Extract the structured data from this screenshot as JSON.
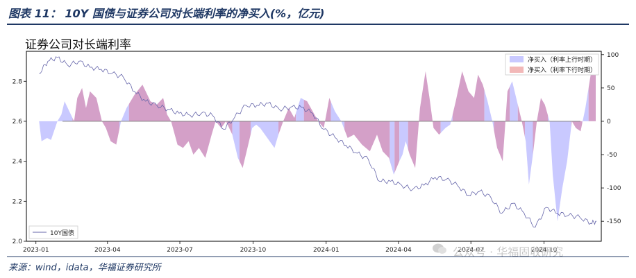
{
  "figure": {
    "caption": "图表 11： 10Y 国债与证券公司对长端利率的净买入(%，亿元)",
    "source": "来源：wind，idata，华福证券研究所",
    "watermark": "公众号 · 华福固收研究"
  },
  "chart_data": {
    "type": "area",
    "title": "证券公司对长端利率",
    "x_ticks": [
      "2023-01",
      "2023-04",
      "2023-07",
      "2023-10",
      "2024-01",
      "2024-04",
      "2024-07",
      "2024-10"
    ],
    "y_left": {
      "lim": [
        2.0,
        2.95
      ],
      "ticks": [
        "2.0",
        "2.2",
        "2.4",
        "2.6",
        "2.8"
      ]
    },
    "y_right": {
      "lim": [
        -180,
        105
      ],
      "ticks": [
        "100",
        "50",
        "0",
        "-50",
        "-100",
        "-150"
      ]
    },
    "legend_top_right": [
      "净买入（利率上行时期）",
      "净买入（利率下行时期）"
    ],
    "legend_bottom_left": [
      "10Y国债"
    ],
    "colors": {
      "rate_up": "#c9c9ff",
      "rate_down": "#d4a0c8",
      "bond_line": "#6666aa",
      "legend_down_swatch": "#f2b8b8"
    },
    "net_buy": [
      {
        "date": "2023-01-05",
        "value": 0
      },
      {
        "date": "2023-01-08",
        "value": -30
      },
      {
        "date": "2023-01-15",
        "value": -25
      },
      {
        "date": "2023-01-20",
        "value": -28
      },
      {
        "date": "2023-01-28",
        "value": 0
      },
      {
        "date": "2023-02-02",
        "value": 10
      },
      {
        "date": "2023-02-06",
        "value": 30
      },
      {
        "date": "2023-02-12",
        "value": 15
      },
      {
        "date": "2023-02-18",
        "value": 0
      },
      {
        "date": "2023-02-22",
        "value": 35
      },
      {
        "date": "2023-02-28",
        "value": 50
      },
      {
        "date": "2023-03-05",
        "value": 20
      },
      {
        "date": "2023-03-10",
        "value": 45
      },
      {
        "date": "2023-03-18",
        "value": 35
      },
      {
        "date": "2023-03-25",
        "value": 0
      },
      {
        "date": "2023-03-30",
        "value": -10
      },
      {
        "date": "2023-04-05",
        "value": -30
      },
      {
        "date": "2023-04-12",
        "value": -35
      },
      {
        "date": "2023-04-18",
        "value": 0
      },
      {
        "date": "2023-04-25",
        "value": 20
      },
      {
        "date": "2023-05-05",
        "value": 40
      },
      {
        "date": "2023-05-15",
        "value": 55
      },
      {
        "date": "2023-05-25",
        "value": 30
      },
      {
        "date": "2023-06-02",
        "value": 25
      },
      {
        "date": "2023-06-10",
        "value": 35
      },
      {
        "date": "2023-06-15",
        "value": 10
      },
      {
        "date": "2023-06-20",
        "value": 0
      },
      {
        "date": "2023-06-28",
        "value": -35
      },
      {
        "date": "2023-07-05",
        "value": -40
      },
      {
        "date": "2023-07-12",
        "value": -30
      },
      {
        "date": "2023-07-18",
        "value": -50
      },
      {
        "date": "2023-07-25",
        "value": -40
      },
      {
        "date": "2023-08-02",
        "value": -55
      },
      {
        "date": "2023-08-10",
        "value": -20
      },
      {
        "date": "2023-08-15",
        "value": 0
      },
      {
        "date": "2023-08-22",
        "value": -10
      },
      {
        "date": "2023-08-28",
        "value": 0
      },
      {
        "date": "2023-09-05",
        "value": -20
      },
      {
        "date": "2023-09-12",
        "value": -55
      },
      {
        "date": "2023-09-18",
        "value": -70
      },
      {
        "date": "2023-09-24",
        "value": -40
      },
      {
        "date": "2023-09-30",
        "value": -10
      },
      {
        "date": "2023-10-05",
        "value": -5
      },
      {
        "date": "2023-10-10",
        "value": -10
      },
      {
        "date": "2023-10-16",
        "value": -20
      },
      {
        "date": "2023-10-22",
        "value": -30
      },
      {
        "date": "2023-10-28",
        "value": -40
      },
      {
        "date": "2023-11-02",
        "value": -20
      },
      {
        "date": "2023-11-08",
        "value": 0
      },
      {
        "date": "2023-11-15",
        "value": 20
      },
      {
        "date": "2023-11-22",
        "value": 5
      },
      {
        "date": "2023-11-30",
        "value": 35
      },
      {
        "date": "2023-12-08",
        "value": 30
      },
      {
        "date": "2023-12-15",
        "value": 15
      },
      {
        "date": "2023-12-22",
        "value": 0
      },
      {
        "date": "2023-12-29",
        "value": -10
      },
      {
        "date": "2024-01-05",
        "value": 35
      },
      {
        "date": "2024-01-12",
        "value": 15
      },
      {
        "date": "2024-01-20",
        "value": 0
      },
      {
        "date": "2024-01-28",
        "value": -25
      },
      {
        "date": "2024-02-05",
        "value": -20
      },
      {
        "date": "2024-02-15",
        "value": -35
      },
      {
        "date": "2024-02-25",
        "value": -45
      },
      {
        "date": "2024-03-05",
        "value": -20
      },
      {
        "date": "2024-03-12",
        "value": -45
      },
      {
        "date": "2024-03-20",
        "value": -55
      },
      {
        "date": "2024-03-26",
        "value": -80
      },
      {
        "date": "2024-04-02",
        "value": -60
      },
      {
        "date": "2024-04-06",
        "value": -50
      },
      {
        "date": "2024-04-10",
        "value": -30
      },
      {
        "date": "2024-04-15",
        "value": -50
      },
      {
        "date": "2024-04-22",
        "value": -70
      },
      {
        "date": "2024-04-28",
        "value": 20
      },
      {
        "date": "2024-05-05",
        "value": 75
      },
      {
        "date": "2024-05-10",
        "value": 35
      },
      {
        "date": "2024-05-15",
        "value": -10
      },
      {
        "date": "2024-05-22",
        "value": -20
      },
      {
        "date": "2024-05-30",
        "value": -10
      },
      {
        "date": "2024-06-05",
        "value": -5
      },
      {
        "date": "2024-06-12",
        "value": 30
      },
      {
        "date": "2024-06-20",
        "value": 75
      },
      {
        "date": "2024-06-28",
        "value": 45
      },
      {
        "date": "2024-07-05",
        "value": 35
      },
      {
        "date": "2024-07-10",
        "value": 70
      },
      {
        "date": "2024-07-16",
        "value": 55
      },
      {
        "date": "2024-07-22",
        "value": 30
      },
      {
        "date": "2024-07-28",
        "value": 0
      },
      {
        "date": "2024-08-03",
        "value": -40
      },
      {
        "date": "2024-08-10",
        "value": -60
      },
      {
        "date": "2024-08-16",
        "value": 45
      },
      {
        "date": "2024-08-22",
        "value": 60
      },
      {
        "date": "2024-08-28",
        "value": 30
      },
      {
        "date": "2024-09-03",
        "value": 0
      },
      {
        "date": "2024-09-08",
        "value": -30
      },
      {
        "date": "2024-09-12",
        "value": -95
      },
      {
        "date": "2024-09-17",
        "value": -50
      },
      {
        "date": "2024-09-22",
        "value": 0
      },
      {
        "date": "2024-09-27",
        "value": 35
      },
      {
        "date": "2024-10-02",
        "value": 25
      },
      {
        "date": "2024-10-08",
        "value": 0
      },
      {
        "date": "2024-10-12",
        "value": -80
      },
      {
        "date": "2024-10-18",
        "value": -150
      },
      {
        "date": "2024-10-24",
        "value": -100
      },
      {
        "date": "2024-10-30",
        "value": -60
      },
      {
        "date": "2024-11-05",
        "value": 0
      },
      {
        "date": "2024-11-10",
        "value": -10
      },
      {
        "date": "2024-11-16",
        "value": -15
      },
      {
        "date": "2024-11-22",
        "value": 20
      },
      {
        "date": "2024-11-30",
        "value": 80
      },
      {
        "date": "2024-12-05",
        "value": 85
      }
    ],
    "rate_periods": [
      {
        "start": "2023-01-01",
        "end": "2023-02-16",
        "direction": "up"
      },
      {
        "start": "2023-02-16",
        "end": "2023-04-16",
        "direction": "down"
      },
      {
        "start": "2023-04-16",
        "end": "2023-04-28",
        "direction": "up"
      },
      {
        "start": "2023-04-28",
        "end": "2023-09-05",
        "direction": "down"
      },
      {
        "start": "2023-09-05",
        "end": "2023-09-14",
        "direction": "up"
      },
      {
        "start": "2023-09-14",
        "end": "2023-09-28",
        "direction": "down"
      },
      {
        "start": "2023-09-28",
        "end": "2023-11-02",
        "direction": "up"
      },
      {
        "start": "2023-11-02",
        "end": "2023-11-24",
        "direction": "down"
      },
      {
        "start": "2023-11-24",
        "end": "2023-12-04",
        "direction": "up"
      },
      {
        "start": "2023-12-04",
        "end": "2024-01-07",
        "direction": "down"
      },
      {
        "start": "2024-01-07",
        "end": "2024-01-24",
        "direction": "up"
      },
      {
        "start": "2024-01-24",
        "end": "2024-03-21",
        "direction": "down"
      },
      {
        "start": "2024-03-21",
        "end": "2024-03-27",
        "direction": "up"
      },
      {
        "start": "2024-03-27",
        "end": "2024-04-02",
        "direction": "down"
      },
      {
        "start": "2024-04-02",
        "end": "2024-04-13",
        "direction": "up"
      },
      {
        "start": "2024-04-13",
        "end": "2024-05-24",
        "direction": "down"
      },
      {
        "start": "2024-05-24",
        "end": "2024-06-08",
        "direction": "up"
      },
      {
        "start": "2024-06-08",
        "end": "2024-07-18",
        "direction": "down"
      },
      {
        "start": "2024-07-18",
        "end": "2024-07-30",
        "direction": "up"
      },
      {
        "start": "2024-07-30",
        "end": "2024-08-19",
        "direction": "down"
      },
      {
        "start": "2024-08-19",
        "end": "2024-08-29",
        "direction": "up"
      },
      {
        "start": "2024-08-29",
        "end": "2024-09-07",
        "direction": "down"
      },
      {
        "start": "2024-09-07",
        "end": "2024-09-17",
        "direction": "up"
      },
      {
        "start": "2024-09-17",
        "end": "2024-10-06",
        "direction": "down"
      },
      {
        "start": "2024-10-06",
        "end": "2024-11-04",
        "direction": "up"
      },
      {
        "start": "2024-11-04",
        "end": "2024-11-18",
        "direction": "down"
      },
      {
        "start": "2024-11-18",
        "end": "2024-11-26",
        "direction": "up"
      },
      {
        "start": "2024-11-26",
        "end": "2024-12-08",
        "direction": "down"
      }
    ],
    "bond_10y": [
      {
        "date": "2023-01-05",
        "value": 2.84
      },
      {
        "date": "2023-01-16",
        "value": 2.9
      },
      {
        "date": "2023-01-28",
        "value": 2.92
      },
      {
        "date": "2023-02-10",
        "value": 2.88
      },
      {
        "date": "2023-02-24",
        "value": 2.9
      },
      {
        "date": "2023-03-10",
        "value": 2.87
      },
      {
        "date": "2023-03-24",
        "value": 2.86
      },
      {
        "date": "2023-04-07",
        "value": 2.84
      },
      {
        "date": "2023-04-21",
        "value": 2.82
      },
      {
        "date": "2023-05-05",
        "value": 2.75
      },
      {
        "date": "2023-05-19",
        "value": 2.7
      },
      {
        "date": "2023-06-02",
        "value": 2.68
      },
      {
        "date": "2023-06-16",
        "value": 2.66
      },
      {
        "date": "2023-06-30",
        "value": 2.64
      },
      {
        "date": "2023-07-14",
        "value": 2.63
      },
      {
        "date": "2023-07-28",
        "value": 2.64
      },
      {
        "date": "2023-08-11",
        "value": 2.63
      },
      {
        "date": "2023-08-25",
        "value": 2.56
      },
      {
        "date": "2023-09-08",
        "value": 2.62
      },
      {
        "date": "2023-09-22",
        "value": 2.68
      },
      {
        "date": "2023-10-06",
        "value": 2.68
      },
      {
        "date": "2023-10-20",
        "value": 2.69
      },
      {
        "date": "2023-11-03",
        "value": 2.66
      },
      {
        "date": "2023-11-17",
        "value": 2.67
      },
      {
        "date": "2023-12-01",
        "value": 2.67
      },
      {
        "date": "2023-12-15",
        "value": 2.64
      },
      {
        "date": "2023-12-29",
        "value": 2.56
      },
      {
        "date": "2024-01-12",
        "value": 2.52
      },
      {
        "date": "2024-01-26",
        "value": 2.48
      },
      {
        "date": "2024-02-09",
        "value": 2.44
      },
      {
        "date": "2024-02-23",
        "value": 2.41
      },
      {
        "date": "2024-03-08",
        "value": 2.3
      },
      {
        "date": "2024-03-22",
        "value": 2.3
      },
      {
        "date": "2024-04-05",
        "value": 2.28
      },
      {
        "date": "2024-04-19",
        "value": 2.26
      },
      {
        "date": "2024-05-03",
        "value": 2.28
      },
      {
        "date": "2024-05-17",
        "value": 2.32
      },
      {
        "date": "2024-05-31",
        "value": 2.31
      },
      {
        "date": "2024-06-14",
        "value": 2.28
      },
      {
        "date": "2024-06-28",
        "value": 2.23
      },
      {
        "date": "2024-07-12",
        "value": 2.25
      },
      {
        "date": "2024-07-26",
        "value": 2.22
      },
      {
        "date": "2024-08-09",
        "value": 2.14
      },
      {
        "date": "2024-08-23",
        "value": 2.19
      },
      {
        "date": "2024-09-06",
        "value": 2.14
      },
      {
        "date": "2024-09-20",
        "value": 2.07
      },
      {
        "date": "2024-10-04",
        "value": 2.17
      },
      {
        "date": "2024-10-18",
        "value": 2.14
      },
      {
        "date": "2024-11-01",
        "value": 2.13
      },
      {
        "date": "2024-11-15",
        "value": 2.12
      },
      {
        "date": "2024-11-29",
        "value": 2.09
      },
      {
        "date": "2024-12-06",
        "value": 2.1
      }
    ]
  }
}
